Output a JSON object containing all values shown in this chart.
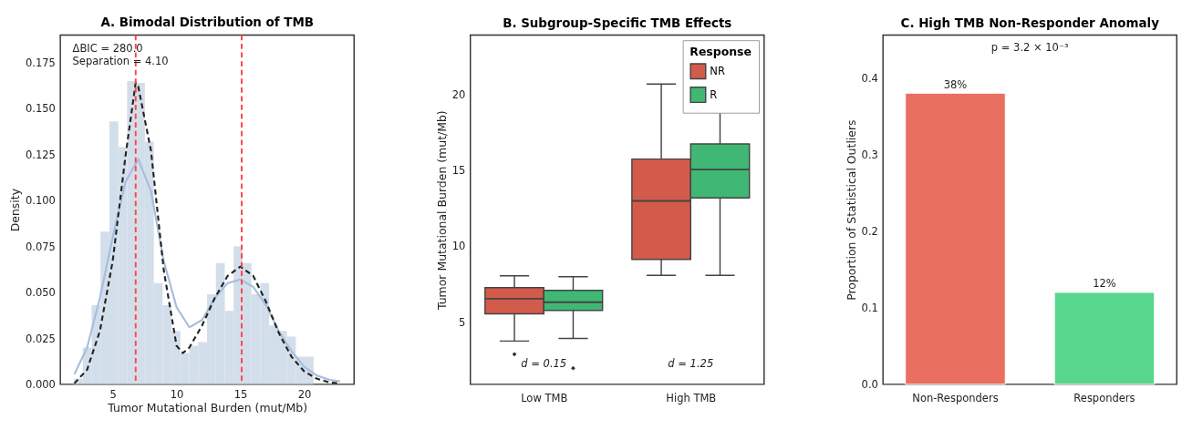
{
  "chart_data": [
    {
      "type": "histogram",
      "title": "A. Bimodal Distribution of TMB",
      "xlabel": "Tumor Mutational Burden (mut/Mb)",
      "ylabel": "Density",
      "color": "#d3deeb",
      "bins": [
        1.96,
        2.66,
        3.35,
        4.05,
        4.74,
        5.44,
        6.13,
        6.83,
        7.52,
        8.22,
        8.91,
        9.61,
        10.3,
        11.0,
        11.69,
        12.39,
        13.08,
        13.78,
        14.47,
        15.17,
        15.86,
        16.56,
        17.25,
        17.95,
        18.64,
        19.34,
        20.03,
        20.73
      ],
      "values": [
        0.003,
        0.02,
        0.043,
        0.083,
        0.143,
        0.129,
        0.165,
        0.164,
        0.132,
        0.055,
        0.043,
        0.029,
        0.017,
        0.021,
        0.023,
        0.049,
        0.066,
        0.04,
        0.075,
        0.066,
        0.049,
        0.055,
        0.032,
        0.029,
        0.026,
        0.015,
        0.015
      ],
      "series": [
        {
          "type": "line",
          "line_style": "solid",
          "color": "#a6bedc",
          "x": [
            2,
            3,
            4,
            5,
            6,
            7,
            8,
            9,
            10,
            11,
            12,
            13,
            14,
            15,
            16,
            17,
            18,
            19,
            20,
            21,
            22,
            22.8
          ],
          "values": [
            0.0055,
            0.02,
            0.047,
            0.08,
            0.11,
            0.1225,
            0.105,
            0.067,
            0.042,
            0.031,
            0.035,
            0.047,
            0.055,
            0.057,
            0.053,
            0.043,
            0.029,
            0.018,
            0.0095,
            0.0047,
            0.0024,
            0.0016
          ]
        },
        {
          "type": "line",
          "line_style": "dashed",
          "color": "#222222",
          "x": [
            2,
            3,
            4,
            5,
            6,
            6.8,
            7,
            8,
            9,
            10,
            10.5,
            11,
            12,
            13,
            14,
            15,
            16,
            17,
            18,
            19,
            20,
            21,
            22,
            22.8
          ],
          "values": [
            0.0005,
            0.008,
            0.029,
            0.067,
            0.124,
            0.164,
            0.162,
            0.127,
            0.062,
            0.021,
            0.017,
            0.02,
            0.032,
            0.047,
            0.059,
            0.064,
            0.059,
            0.045,
            0.028,
            0.015,
            0.007,
            0.003,
            0.001,
            0.0005
          ]
        }
      ],
      "ref_lines": [
        {
          "axis": "x",
          "value": 6.8,
          "color": "#ff4444",
          "line_style": "dashed"
        },
        {
          "axis": "x",
          "value": 15.1,
          "color": "#ff4444",
          "line_style": "dashed"
        }
      ],
      "annotations": [
        "ΔBIC = 280.0",
        "Separation = 4.10"
      ],
      "xlim": [
        0.9,
        23.9
      ],
      "xticks": [
        5,
        10,
        15,
        20
      ],
      "ylim": [
        0,
        0.19
      ],
      "yticks": [
        {
          "value": 0,
          "label": "0.000"
        },
        {
          "value": 0.025,
          "label": "0.025"
        },
        {
          "value": 0.05,
          "label": "0.050"
        },
        {
          "value": 0.075,
          "label": "0.075"
        },
        {
          "value": 0.1,
          "label": "0.100"
        },
        {
          "value": 0.125,
          "label": "0.125"
        },
        {
          "value": 0.15,
          "label": "0.150"
        },
        {
          "value": 0.175,
          "label": "0.175"
        }
      ],
      "grid": false
    },
    {
      "type": "box",
      "title": "B. Subgroup-Specific TMB Effects",
      "ylabel": "Tumor Mutational Burden (mut/Mb)",
      "legend_title": "Response",
      "legend": "top right",
      "categories": [
        "Low TMB",
        "High TMB"
      ],
      "series": [
        {
          "name": "NR",
          "color": "#d35b4b",
          "boxes": [
            {
              "low": 3.75,
              "q1": 5.54,
              "median": 6.54,
              "q3": 7.27,
              "high": 8.04,
              "outliers": [
                2.88
              ]
            },
            {
              "low": 8.08,
              "q1": 9.13,
              "median": 12.98,
              "q3": 15.73,
              "high": 20.67
            }
          ]
        },
        {
          "name": "R",
          "color": "#40b874",
          "boxes": [
            {
              "low": 3.92,
              "q1": 5.77,
              "median": 6.31,
              "q3": 7.08,
              "high": 7.98,
              "outliers": [
                1.96
              ]
            },
            {
              "low": 8.08,
              "q1": 13.17,
              "median": 15.04,
              "q3": 16.73,
              "high": 21.9
            }
          ]
        }
      ],
      "annotations": [
        "d = 0.15",
        "d = 1.25"
      ],
      "ylim": [
        0.9,
        23.9
      ],
      "yticks": [
        5,
        10,
        15,
        20
      ],
      "grid": false
    },
    {
      "type": "bar",
      "title": "C. High TMB Non-Responder Anomaly",
      "ylabel": "Proportion of Statistical Outliers",
      "categories": [
        "Non-Responders",
        "Responders"
      ],
      "values": [
        0.38,
        0.12
      ],
      "colors": [
        "#e96f61",
        "#58d68d"
      ],
      "value_labels": [
        "38%",
        "12%"
      ],
      "annotations": [
        "p = 3.2 × 10⁻³"
      ],
      "ylim": [
        0,
        0.456
      ],
      "yticks": [
        {
          "value": 0,
          "label": "0.0"
        },
        {
          "value": 0.1,
          "label": "0.1"
        },
        {
          "value": 0.2,
          "label": "0.2"
        },
        {
          "value": 0.3,
          "label": "0.3"
        },
        {
          "value": 0.4,
          "label": "0.4"
        }
      ],
      "grid": false
    }
  ]
}
